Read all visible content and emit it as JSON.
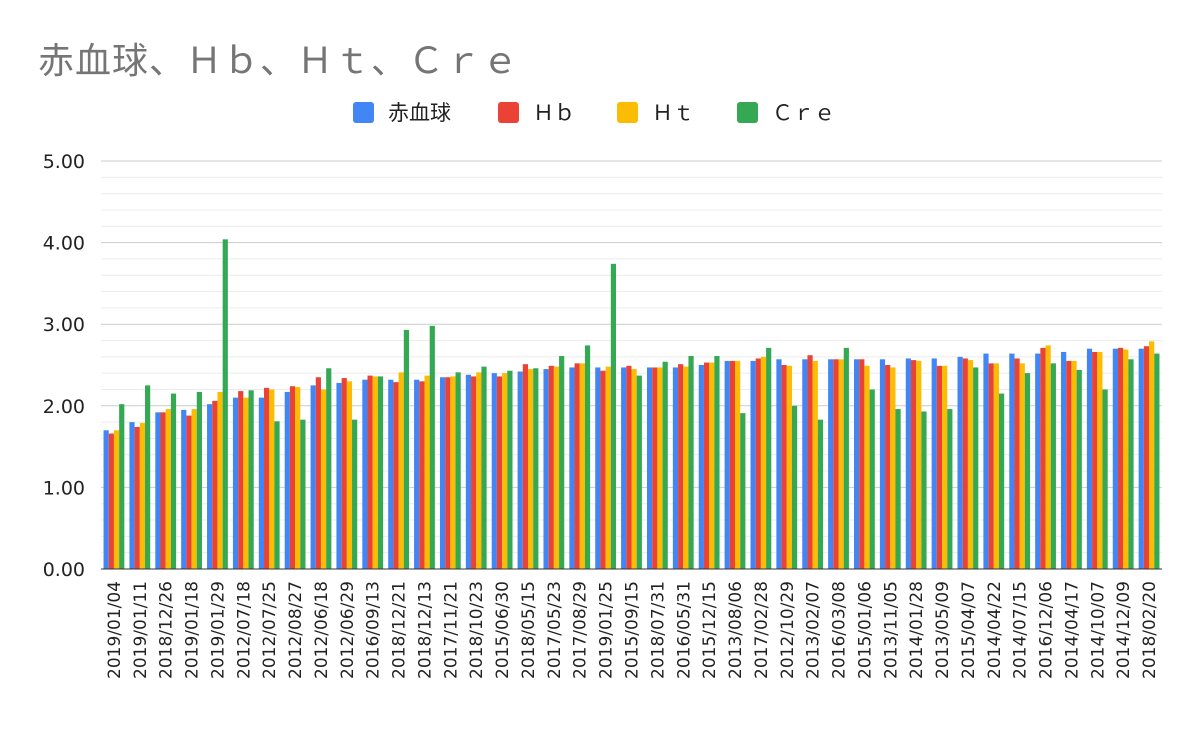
{
  "chart_data": {
    "type": "bar",
    "title": "赤血球、Ｈｂ、Ｈｔ、Ｃｒｅ",
    "legend_position": "top",
    "grid": true,
    "ylim": [
      0,
      5
    ],
    "yticks": [
      "0.00",
      "1.00",
      "2.00",
      "3.00",
      "4.00",
      "5.00"
    ],
    "categories": [
      "2019/01/04",
      "2019/01/11",
      "2018/12/26",
      "2019/01/18",
      "2019/01/29",
      "2012/07/18",
      "2012/07/25",
      "2012/08/27",
      "2012/06/18",
      "2012/06/29",
      "2016/09/13",
      "2018/12/21",
      "2018/12/13",
      "2017/11/21",
      "2018/10/23",
      "2015/06/30",
      "2018/05/15",
      "2017/05/23",
      "2017/08/29",
      "2019/01/25",
      "2015/09/15",
      "2018/07/31",
      "2016/05/31",
      "2015/12/15",
      "2013/08/06",
      "2017/02/28",
      "2012/10/29",
      "2013/02/07",
      "2016/03/08",
      "2015/01/06",
      "2013/11/05",
      "2014/01/28",
      "2013/05/09",
      "2015/04/07",
      "2014/04/22",
      "2014/07/15",
      "2016/12/06",
      "2014/04/17",
      "2014/10/07",
      "2014/12/09",
      "2018/02/20"
    ],
    "series": [
      {
        "name": "赤血球",
        "color": "#4285f4",
        "values": [
          1.7,
          1.8,
          1.92,
          1.95,
          2.02,
          2.1,
          2.1,
          2.17,
          2.25,
          2.28,
          2.32,
          2.32,
          2.32,
          2.35,
          2.38,
          2.4,
          2.42,
          2.45,
          2.47,
          2.47,
          2.47,
          2.47,
          2.47,
          2.5,
          2.55,
          2.55,
          2.57,
          2.57,
          2.57,
          2.57,
          2.57,
          2.58,
          2.58,
          2.6,
          2.64,
          2.64,
          2.64,
          2.66,
          2.7,
          2.7,
          2.7
        ]
      },
      {
        "name": "Ｈｂ",
        "color": "#ea4335",
        "values": [
          1.66,
          1.74,
          1.92,
          1.88,
          2.06,
          2.18,
          2.22,
          2.24,
          2.35,
          2.34,
          2.37,
          2.29,
          2.3,
          2.35,
          2.36,
          2.36,
          2.51,
          2.49,
          2.52,
          2.43,
          2.49,
          2.47,
          2.51,
          2.53,
          2.55,
          2.58,
          2.5,
          2.62,
          2.57,
          2.57,
          2.5,
          2.56,
          2.49,
          2.58,
          2.52,
          2.58,
          2.71,
          2.55,
          2.66,
          2.71,
          2.73
        ]
      },
      {
        "name": "Ｈｔ",
        "color": "#fbbc04",
        "values": [
          1.7,
          1.79,
          1.96,
          1.96,
          2.17,
          2.1,
          2.2,
          2.23,
          2.2,
          2.3,
          2.36,
          2.41,
          2.37,
          2.36,
          2.41,
          2.4,
          2.45,
          2.48,
          2.52,
          2.48,
          2.45,
          2.47,
          2.48,
          2.53,
          2.55,
          2.6,
          2.49,
          2.55,
          2.57,
          2.49,
          2.47,
          2.55,
          2.49,
          2.56,
          2.52,
          2.52,
          2.74,
          2.55,
          2.66,
          2.69,
          2.79
        ]
      },
      {
        "name": "Ｃｒｅ",
        "color": "#34a853",
        "values": [
          2.02,
          2.25,
          2.15,
          2.17,
          4.04,
          2.19,
          1.81,
          1.83,
          2.46,
          1.83,
          2.36,
          2.93,
          2.98,
          2.41,
          2.48,
          2.43,
          2.46,
          2.61,
          2.74,
          3.74,
          2.37,
          2.54,
          2.61,
          2.61,
          1.91,
          2.71,
          2.0,
          1.83,
          2.71,
          2.2,
          1.96,
          1.93,
          1.96,
          2.47,
          2.15,
          2.4,
          2.52,
          2.44,
          2.2,
          2.57,
          2.64
        ]
      }
    ]
  }
}
